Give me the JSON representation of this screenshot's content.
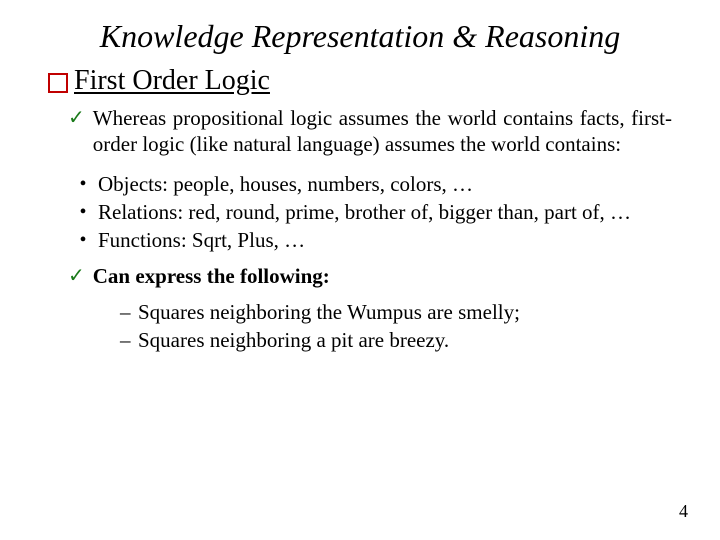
{
  "title": "Knowledge Representation & Reasoning",
  "subtitle": "First Order Logic",
  "check1": "Whereas propositional logic assumes the world contains facts, first-order logic (like natural language) assumes the world contains:",
  "bullets": {
    "b1": "Objects: people, houses, numbers, colors, …",
    "b2": "Relations: red, round, prime, brother of, bigger than, part of, …",
    "b3": "Functions: Sqrt, Plus, …"
  },
  "check2": "Can express the following:",
  "dashes": {
    "d1": "Squares neighboring the Wumpus are smelly;",
    "d2": "Squares neighboring a pit are breezy."
  },
  "pageNumber": "4",
  "colors": {
    "square_border": "#c00000",
    "check": "#1a7a1a",
    "text": "#000000",
    "background": "#ffffff"
  },
  "fonts": {
    "family": "Times New Roman",
    "title_size_pt": 24,
    "subtitle_size_pt": 21,
    "body_size_pt": 16
  }
}
